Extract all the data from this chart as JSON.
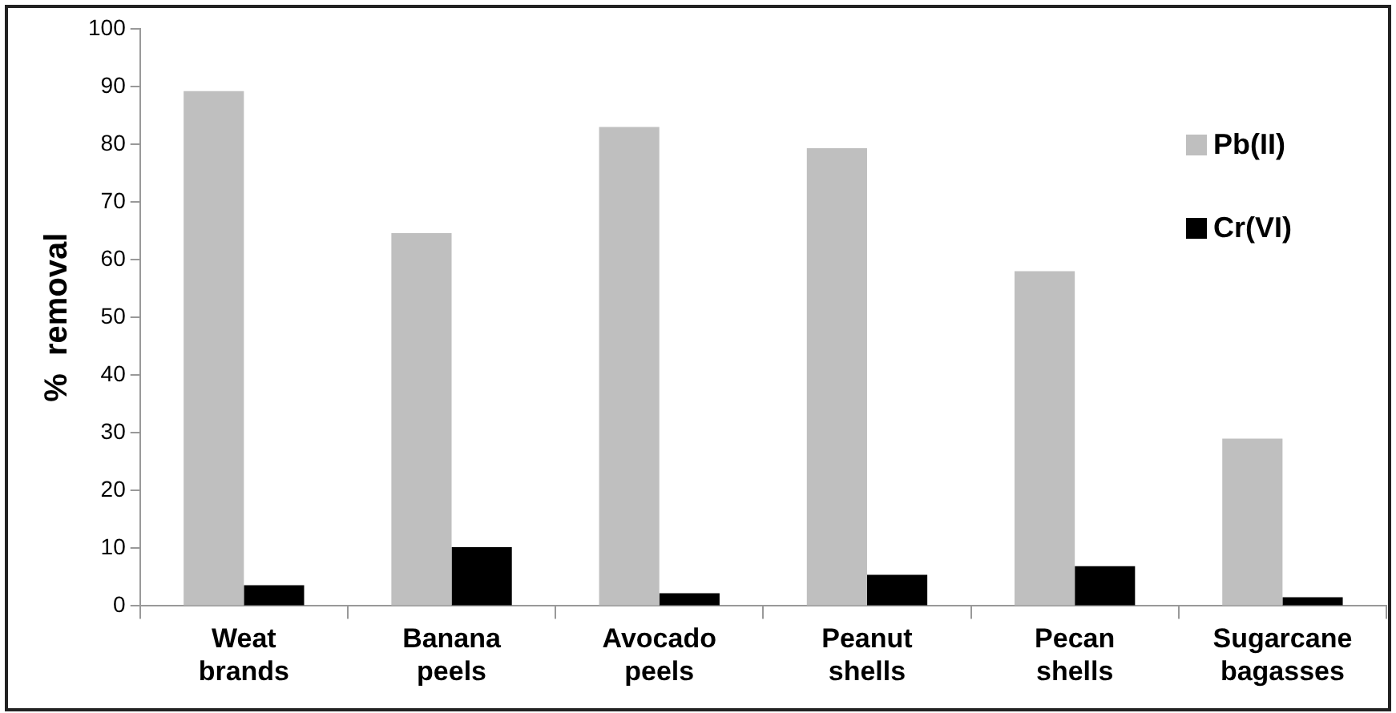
{
  "chart_data": {
    "type": "bar",
    "ylabel": "%  removal",
    "categories": [
      "Weat brands",
      "Banana peels",
      "Avocado peels",
      "Peanut shells",
      "Pecan shells",
      "Sugarcane bagasses"
    ],
    "series": [
      {
        "name": "Pb(II)",
        "color": "#bfbfbf",
        "values": [
          89.2,
          64.6,
          83.0,
          79.3,
          58.0,
          29.0
        ]
      },
      {
        "name": "Cr(VI)",
        "color": "#000000",
        "values": [
          3.6,
          10.2,
          2.2,
          5.4,
          6.9,
          1.5
        ]
      }
    ],
    "ylim": [
      0,
      100
    ],
    "yticks": [
      0,
      10,
      20,
      30,
      40,
      50,
      60,
      70,
      80,
      90,
      100
    ],
    "grid": false,
    "legend": "top right"
  }
}
